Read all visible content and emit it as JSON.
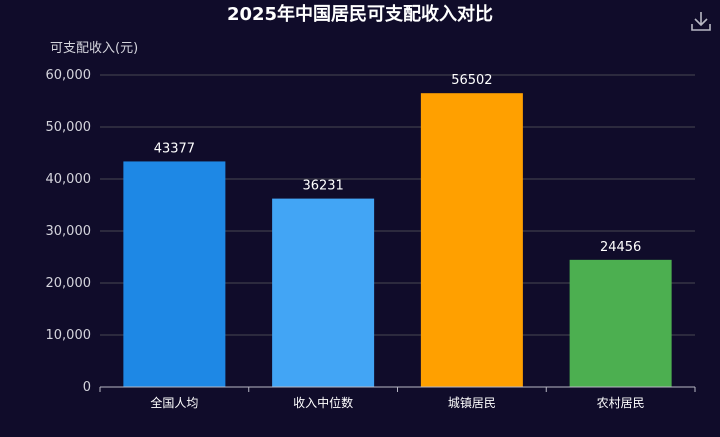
{
  "chart_data": {
    "type": "bar",
    "title": "2025年中国居民可支配收入对比",
    "ylabel": "可支配收入(元)",
    "xlabel": "",
    "categories": [
      "全国人均",
      "收入中位数",
      "城镇居民",
      "农村居民"
    ],
    "values": [
      43377,
      36231,
      56502,
      24456
    ],
    "colors": [
      "#1e88e5",
      "#42a5f5",
      "#ffa000",
      "#4caf50"
    ],
    "ylim": [
      0,
      60000
    ],
    "yticks": [
      "0",
      "10,000",
      "20,000",
      "30,000",
      "40,000",
      "50,000",
      "60,000"
    ],
    "grid": true,
    "legend": "none"
  },
  "toolbar": {
    "download_icon": "download-icon"
  }
}
